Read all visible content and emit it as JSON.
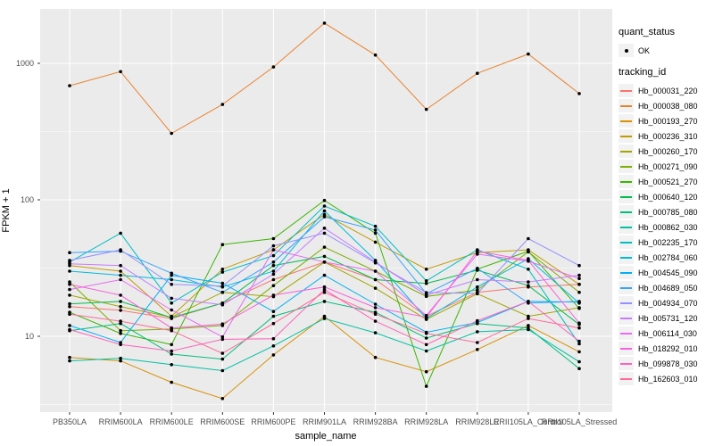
{
  "chart_data": {
    "type": "line",
    "title": "",
    "xlabel": "sample_name",
    "ylabel": "FPKM + 1",
    "x_categories": [
      "PB350LA",
      "RRIM600LA",
      "RRIM600LE",
      "RRIM600SE",
      "RRIM600PE",
      "RRIM901LA",
      "RRIM928BA",
      "RRIM928LA",
      "RRIM928LE",
      "RRII105LA_Control",
      "RRII105LA_Stressed"
    ],
    "y_scale": "log10",
    "y_ticks": [
      10,
      100,
      1000
    ],
    "y_minor_ticks": [
      3.162,
      31.62,
      316.2
    ],
    "ylim": [
      2.7,
      2500
    ],
    "grid": true,
    "legend_position": "right",
    "point_marker": "black-dot",
    "series": [
      {
        "name": "Hb_000031_220",
        "color": "#F8766D",
        "values": [
          16.5,
          15.5,
          13.5,
          17.5,
          26,
          35,
          26,
          14,
          21,
          23,
          24
        ]
      },
      {
        "name": "Hb_000038_080",
        "color": "#EA8331",
        "values": [
          685,
          870,
          307,
          500,
          940,
          1970,
          1150,
          460,
          845,
          1170,
          600
        ]
      },
      {
        "name": "Hb_000193_270",
        "color": "#D89000",
        "values": [
          7.0,
          6.6,
          4.6,
          3.5,
          7.3,
          14,
          7.0,
          5.5,
          8.0,
          12,
          7.7
        ]
      },
      {
        "name": "Hb_000236_310",
        "color": "#C09B00",
        "values": [
          33,
          30,
          14,
          31,
          43,
          78,
          49,
          31,
          41,
          43,
          24
        ]
      },
      {
        "name": "Hb_000260_170",
        "color": "#A3A500",
        "values": [
          20,
          16.5,
          13.8,
          21,
          19.5,
          35,
          22.5,
          13.3,
          20.5,
          14,
          16.2
        ]
      },
      {
        "name": "Hb_000271_090",
        "color": "#7CAE00",
        "values": [
          25,
          11,
          11.3,
          12,
          23.5,
          45,
          30,
          19.6,
          21.8,
          41.5,
          21
        ]
      },
      {
        "name": "Hb_000521_270",
        "color": "#39B600",
        "values": [
          15,
          10.5,
          8.7,
          47,
          52,
          99,
          57,
          4.3,
          31,
          42,
          16
        ]
      },
      {
        "name": "Hb_000640_120",
        "color": "#00BB4E",
        "values": [
          17.3,
          18,
          13.7,
          17.5,
          33,
          38.5,
          26,
          24.4,
          30.5,
          23.5,
          12.2
        ]
      },
      {
        "name": "Hb_000785_080",
        "color": "#00BF7D",
        "values": [
          11,
          12.4,
          7.4,
          6.8,
          14,
          18,
          15,
          9.7,
          12.4,
          11.5,
          5.8
        ]
      },
      {
        "name": "Hb_000862_030",
        "color": "#00C1A3",
        "values": [
          6.6,
          6.9,
          6.2,
          5.6,
          8.5,
          13.5,
          10.6,
          7.8,
          10.8,
          11.2,
          6.5
        ]
      },
      {
        "name": "Hb_002235_170",
        "color": "#00BFC4",
        "values": [
          35,
          57,
          17.5,
          29.5,
          39,
          90,
          64,
          25.5,
          43,
          31,
          8.8
        ]
      },
      {
        "name": "Hb_002784_060",
        "color": "#00BAE0",
        "values": [
          30,
          28,
          26,
          23,
          30,
          83,
          36,
          13.5,
          23,
          37,
          17.5
        ]
      },
      {
        "name": "Hb_004545_090",
        "color": "#00B0F6",
        "values": [
          12,
          9,
          28,
          24.5,
          15.2,
          28,
          17.2,
          10.7,
          12.6,
          18,
          17.8
        ]
      },
      {
        "name": "Hb_004689_050",
        "color": "#35A2FF",
        "values": [
          41,
          42,
          29,
          21,
          35,
          75,
          60,
          20.5,
          31.5,
          17.5,
          18
        ]
      },
      {
        "name": "Hb_004934_070",
        "color": "#9590FF",
        "values": [
          36,
          43,
          24,
          23.3,
          46,
          57,
          34.5,
          20.9,
          20.6,
          52,
          33
        ]
      },
      {
        "name": "Hb_005731_120",
        "color": "#C77CFF",
        "values": [
          34,
          33,
          19,
          17,
          28.5,
          62,
          35,
          20,
          26,
          25,
          28
        ]
      },
      {
        "name": "Hb_006114_030",
        "color": "#E76BF3",
        "values": [
          22,
          26,
          15.6,
          9.9,
          43,
          35,
          30,
          14.2,
          40,
          35.5,
          26.5
        ]
      },
      {
        "name": "Hb_018292_010",
        "color": "#FA62DB",
        "values": [
          24,
          20,
          11.5,
          12.3,
          20,
          23,
          16.2,
          13.8,
          42,
          36,
          12.5
        ]
      },
      {
        "name": "Hb_099878_030",
        "color": "#FF62BC",
        "values": [
          11.2,
          8.7,
          7.8,
          9.5,
          9.6,
          22,
          12.9,
          8.7,
          13,
          18,
          9.2
        ]
      },
      {
        "name": "Hb_162603_010",
        "color": "#FF6A98",
        "values": [
          14.5,
          12.9,
          11.0,
          7.5,
          12.4,
          21,
          14.5,
          10.5,
          9.0,
          13.5,
          11.5
        ]
      }
    ]
  },
  "axes": {
    "y_title": "FPKM + 1",
    "x_title": "sample_name",
    "y_tick_labels": [
      "1000",
      "100",
      "10"
    ]
  },
  "legend": {
    "quant_status_title": "quant_status",
    "quant_status_items": [
      {
        "label": "OK",
        "marker": "point"
      }
    ],
    "tracking_title": "tracking_id"
  },
  "colors": {
    "panel_bg": "#EBEBEB",
    "grid": "#FFFFFF",
    "tick_mark": "#333333",
    "tick_text": "#4D4D4D",
    "axis_text": "#000000",
    "legend_key_bg": "#F2F2F2",
    "point": "#000000",
    "page_bg": "#FFFFFF"
  }
}
